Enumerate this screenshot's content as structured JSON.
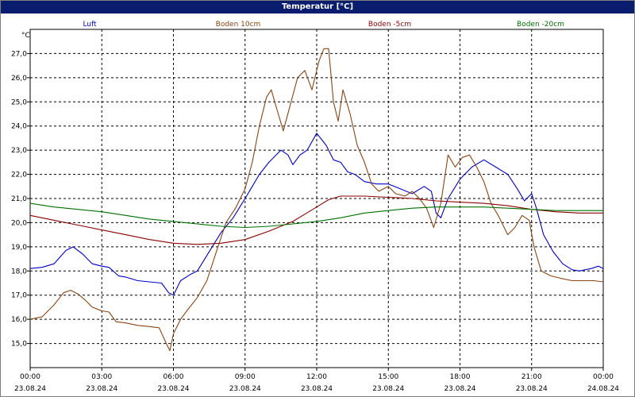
{
  "window": {
    "title": "Temperatur [°C]"
  },
  "chart_data": {
    "type": "line",
    "title": "Temperatur [°C]",
    "ylabel": "°C",
    "ylim": [
      14.0,
      28.0
    ],
    "xlim": [
      0,
      24
    ],
    "grid": true,
    "legend_placement": "top",
    "x_ticks": [
      {
        "x": 0,
        "time": "00:00",
        "date": "23.08.24"
      },
      {
        "x": 3,
        "time": "03:00",
        "date": "23.08.24"
      },
      {
        "x": 6,
        "time": "06:00",
        "date": "23.08.24"
      },
      {
        "x": 9,
        "time": "09:00",
        "date": "23.08.24"
      },
      {
        "x": 12,
        "time": "12:00",
        "date": "23.08.24"
      },
      {
        "x": 15,
        "time": "15:00",
        "date": "23.08.24"
      },
      {
        "x": 18,
        "time": "18:00",
        "date": "23.08.24"
      },
      {
        "x": 21,
        "time": "21:00",
        "date": "23.08.24"
      },
      {
        "x": 24,
        "time": "00:00",
        "date": "24.08.24"
      }
    ],
    "y_ticks": [
      {
        "v": 15.0,
        "label": "15,0"
      },
      {
        "v": 16.0,
        "label": "16,0"
      },
      {
        "v": 17.0,
        "label": "17,0"
      },
      {
        "v": 18.0,
        "label": "18,0"
      },
      {
        "v": 19.0,
        "label": "19,0"
      },
      {
        "v": 20.0,
        "label": "20,0"
      },
      {
        "v": 21.0,
        "label": "21,0"
      },
      {
        "v": 22.0,
        "label": "22,0"
      },
      {
        "v": 23.0,
        "label": "23,0"
      },
      {
        "v": 24.0,
        "label": "24,0"
      },
      {
        "v": 25.0,
        "label": "25,0"
      },
      {
        "v": 26.0,
        "label": "26,0"
      },
      {
        "v": 27.0,
        "label": "27,0"
      }
    ],
    "series": [
      {
        "name": "Luft",
        "color": "#0000cc",
        "points": [
          [
            0,
            18.1
          ],
          [
            0.5,
            18.15
          ],
          [
            1,
            18.3
          ],
          [
            1.5,
            18.85
          ],
          [
            1.8,
            19.0
          ],
          [
            2.2,
            18.7
          ],
          [
            2.6,
            18.3
          ],
          [
            3,
            18.2
          ],
          [
            3.3,
            18.15
          ],
          [
            3.7,
            17.8
          ],
          [
            4,
            17.75
          ],
          [
            4.5,
            17.6
          ],
          [
            5,
            17.55
          ],
          [
            5.5,
            17.5
          ],
          [
            5.8,
            17.1
          ],
          [
            6,
            17.0
          ],
          [
            6.3,
            17.6
          ],
          [
            6.7,
            17.85
          ],
          [
            7,
            18.0
          ],
          [
            7.5,
            18.8
          ],
          [
            8,
            19.6
          ],
          [
            8.5,
            20.2
          ],
          [
            9,
            21.0
          ],
          [
            9.3,
            21.5
          ],
          [
            9.6,
            22.0
          ],
          [
            10,
            22.5
          ],
          [
            10.5,
            23.0
          ],
          [
            10.8,
            22.8
          ],
          [
            11,
            22.4
          ],
          [
            11.3,
            22.8
          ],
          [
            11.6,
            23.0
          ],
          [
            12,
            23.7
          ],
          [
            12.4,
            23.2
          ],
          [
            12.7,
            22.6
          ],
          [
            13,
            22.5
          ],
          [
            13.3,
            22.1
          ],
          [
            13.6,
            22.0
          ],
          [
            14,
            21.7
          ],
          [
            14.5,
            21.6
          ],
          [
            15,
            21.6
          ],
          [
            15.5,
            21.4
          ],
          [
            16,
            21.2
          ],
          [
            16.5,
            21.5
          ],
          [
            16.8,
            21.3
          ],
          [
            17,
            20.4
          ],
          [
            17.2,
            20.2
          ],
          [
            17.5,
            21.0
          ],
          [
            18,
            21.8
          ],
          [
            18.5,
            22.3
          ],
          [
            19,
            22.6
          ],
          [
            19.5,
            22.3
          ],
          [
            20,
            22.0
          ],
          [
            20.4,
            21.4
          ],
          [
            20.7,
            20.9
          ],
          [
            21,
            21.2
          ],
          [
            21.2,
            20.6
          ],
          [
            21.5,
            19.5
          ],
          [
            21.9,
            18.8
          ],
          [
            22.3,
            18.3
          ],
          [
            22.7,
            18.05
          ],
          [
            23,
            18.0
          ],
          [
            23.5,
            18.1
          ],
          [
            23.8,
            18.2
          ],
          [
            24,
            18.1
          ]
        ]
      },
      {
        "name": "Boden 10cm",
        "color": "#8b4513",
        "points": [
          [
            0,
            16.0
          ],
          [
            0.5,
            16.1
          ],
          [
            1,
            16.6
          ],
          [
            1.4,
            17.1
          ],
          [
            1.7,
            17.2
          ],
          [
            2,
            17.05
          ],
          [
            2.3,
            16.8
          ],
          [
            2.6,
            16.5
          ],
          [
            3,
            16.35
          ],
          [
            3.3,
            16.3
          ],
          [
            3.6,
            15.9
          ],
          [
            4,
            15.85
          ],
          [
            4.5,
            15.75
          ],
          [
            5,
            15.7
          ],
          [
            5.4,
            15.65
          ],
          [
            5.7,
            15.0
          ],
          [
            5.85,
            14.7
          ],
          [
            6,
            15.4
          ],
          [
            6.3,
            16.0
          ],
          [
            6.6,
            16.4
          ],
          [
            7,
            16.9
          ],
          [
            7.4,
            17.6
          ],
          [
            7.8,
            18.8
          ],
          [
            8.2,
            20.0
          ],
          [
            8.6,
            20.6
          ],
          [
            9,
            21.4
          ],
          [
            9.3,
            22.5
          ],
          [
            9.6,
            24.0
          ],
          [
            9.9,
            25.2
          ],
          [
            10.1,
            25.5
          ],
          [
            10.3,
            24.8
          ],
          [
            10.6,
            23.8
          ],
          [
            10.9,
            24.9
          ],
          [
            11.2,
            26.0
          ],
          [
            11.5,
            26.3
          ],
          [
            11.8,
            25.5
          ],
          [
            12.1,
            26.7
          ],
          [
            12.3,
            27.2
          ],
          [
            12.5,
            27.2
          ],
          [
            12.7,
            25.0
          ],
          [
            12.9,
            24.2
          ],
          [
            13.1,
            25.5
          ],
          [
            13.4,
            24.5
          ],
          [
            13.7,
            23.2
          ],
          [
            14,
            22.5
          ],
          [
            14.3,
            21.6
          ],
          [
            14.6,
            21.3
          ],
          [
            15,
            21.5
          ],
          [
            15.3,
            21.2
          ],
          [
            15.7,
            21.1
          ],
          [
            16,
            21.3
          ],
          [
            16.3,
            21.0
          ],
          [
            16.6,
            20.6
          ],
          [
            16.9,
            19.8
          ],
          [
            17.2,
            20.8
          ],
          [
            17.5,
            22.8
          ],
          [
            17.8,
            22.3
          ],
          [
            18.1,
            22.7
          ],
          [
            18.4,
            22.8
          ],
          [
            18.7,
            22.3
          ],
          [
            19,
            21.7
          ],
          [
            19.3,
            20.8
          ],
          [
            19.6,
            20.3
          ],
          [
            20,
            19.5
          ],
          [
            20.3,
            19.8
          ],
          [
            20.6,
            20.3
          ],
          [
            20.9,
            20.1
          ],
          [
            21.1,
            19.0
          ],
          [
            21.4,
            18.0
          ],
          [
            21.8,
            17.8
          ],
          [
            22.2,
            17.7
          ],
          [
            22.7,
            17.6
          ],
          [
            23.2,
            17.6
          ],
          [
            23.6,
            17.6
          ],
          [
            24,
            17.55
          ]
        ]
      },
      {
        "name": "Boden -5cm",
        "color": "#8b0000",
        "points": [
          [
            0,
            20.3
          ],
          [
            1,
            20.1
          ],
          [
            2,
            19.9
          ],
          [
            3,
            19.7
          ],
          [
            4,
            19.5
          ],
          [
            5,
            19.3
          ],
          [
            6,
            19.15
          ],
          [
            7,
            19.1
          ],
          [
            8,
            19.15
          ],
          [
            9,
            19.3
          ],
          [
            10,
            19.65
          ],
          [
            11,
            20.05
          ],
          [
            11.5,
            20.35
          ],
          [
            12,
            20.65
          ],
          [
            12.5,
            20.95
          ],
          [
            13,
            21.1
          ],
          [
            14,
            21.1
          ],
          [
            15,
            21.05
          ],
          [
            16,
            21.0
          ],
          [
            17,
            20.9
          ],
          [
            18,
            20.85
          ],
          [
            19,
            20.8
          ],
          [
            20,
            20.7
          ],
          [
            21,
            20.55
          ],
          [
            22,
            20.45
          ],
          [
            23,
            20.4
          ],
          [
            24,
            20.4
          ]
        ]
      },
      {
        "name": "Boden -20cm",
        "color": "#007000",
        "points": [
          [
            0,
            20.8
          ],
          [
            1,
            20.65
          ],
          [
            2,
            20.55
          ],
          [
            3,
            20.45
          ],
          [
            4,
            20.3
          ],
          [
            5,
            20.15
          ],
          [
            6,
            20.05
          ],
          [
            7,
            19.95
          ],
          [
            8,
            19.85
          ],
          [
            9,
            19.8
          ],
          [
            10,
            19.85
          ],
          [
            11,
            19.95
          ],
          [
            12,
            20.05
          ],
          [
            13,
            20.2
          ],
          [
            14,
            20.4
          ],
          [
            15,
            20.5
          ],
          [
            16,
            20.6
          ],
          [
            17,
            20.65
          ],
          [
            18,
            20.65
          ],
          [
            19,
            20.65
          ],
          [
            20,
            20.6
          ],
          [
            21,
            20.55
          ],
          [
            22,
            20.5
          ],
          [
            23,
            20.5
          ],
          [
            24,
            20.5
          ]
        ]
      }
    ]
  }
}
